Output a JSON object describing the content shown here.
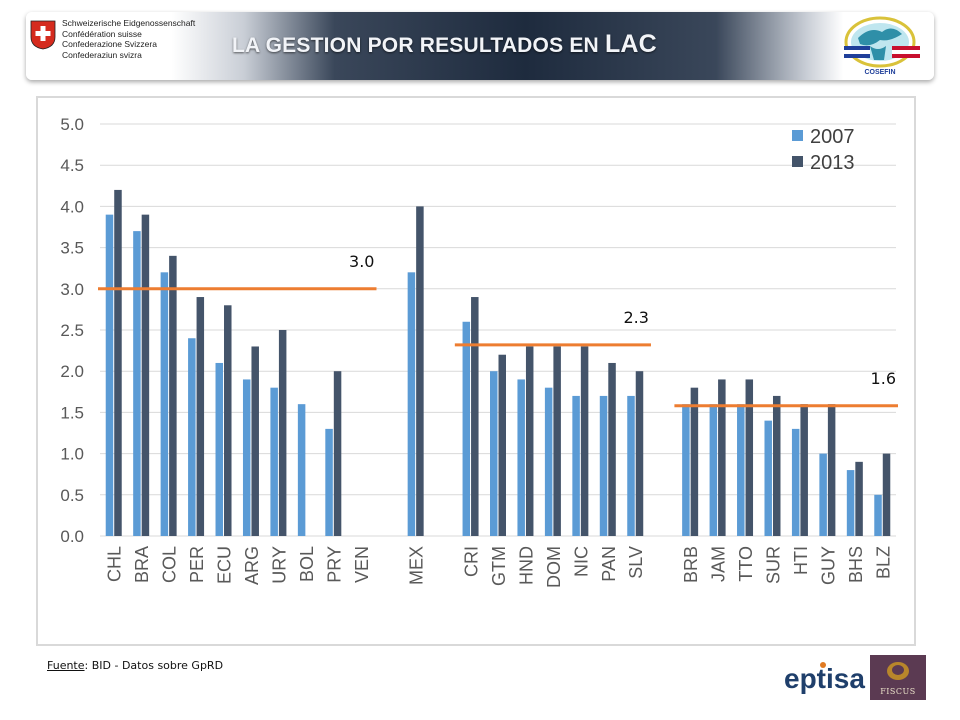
{
  "header": {
    "title_main": "LA GESTION POR RESULTADOS EN ",
    "title_suffix": "LAC",
    "swiss_lines": [
      "Schweizerische Eidgenossenschaft",
      "Confédération suisse",
      "Confederazione Svizzera",
      "Confederaziun svizra"
    ],
    "cosefin_label": "COSEFIN"
  },
  "chart_data": {
    "type": "bar",
    "categories": [
      "CHL",
      "BRA",
      "COL",
      "PER",
      "ECU",
      "ARG",
      "URY",
      "BOL",
      "PRY",
      "VEN",
      "",
      "MEX",
      "",
      "CRI",
      "GTM",
      "HND",
      "DOM",
      "NIC",
      "PAN",
      "SLV",
      "",
      "BRB",
      "JAM",
      "TTO",
      "SUR",
      "HTI",
      "GUY",
      "BHS",
      "BLZ"
    ],
    "series": [
      {
        "name": "2007",
        "color": "#5b9bd5",
        "values": [
          3.9,
          3.7,
          3.2,
          2.4,
          2.1,
          1.9,
          1.8,
          1.6,
          1.3,
          null,
          null,
          3.2,
          null,
          2.6,
          2.0,
          1.9,
          1.8,
          1.7,
          1.7,
          1.7,
          null,
          1.6,
          1.6,
          1.6,
          1.4,
          1.3,
          1.0,
          0.8,
          0.5
        ]
      },
      {
        "name": "2013",
        "color": "#44546a",
        "values": [
          4.2,
          3.9,
          3.4,
          2.9,
          2.8,
          2.3,
          2.5,
          null,
          2.0,
          null,
          null,
          4.0,
          null,
          2.9,
          2.2,
          2.3,
          2.3,
          2.3,
          2.1,
          2.0,
          null,
          1.8,
          1.9,
          1.9,
          1.7,
          1.6,
          1.6,
          0.9,
          1.0
        ]
      }
    ],
    "yticks": [
      "0.0",
      "0.5",
      "1.0",
      "1.5",
      "2.0",
      "2.5",
      "3.0",
      "3.5",
      "4.0",
      "4.5",
      "5.0"
    ],
    "ylim": [
      0,
      5
    ],
    "grid": true,
    "legend": "top-right",
    "reference_lines": [
      {
        "value": 3.0,
        "label": "3.0",
        "from": "CHL",
        "to": "VEN",
        "color": "#ed7d31"
      },
      {
        "value": 2.32,
        "label": "2.3",
        "from": "CRI",
        "to": "SLV",
        "color": "#ed7d31"
      },
      {
        "value": 1.58,
        "label": "1.6",
        "from": "BRB",
        "to": "BLZ",
        "color": "#ed7d31"
      }
    ]
  },
  "footer": {
    "source_label": "Fuente",
    "source_text": ": BID - Datos sobre GpRD",
    "eptisa_label": "eptisa",
    "fiscus_label": "FISCUS"
  }
}
